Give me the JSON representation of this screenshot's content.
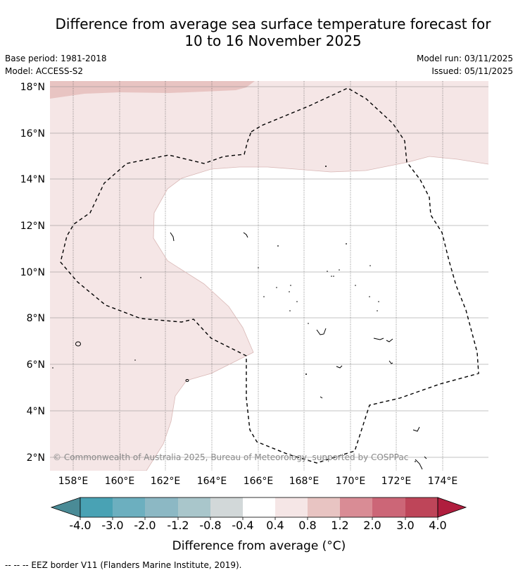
{
  "header": {
    "title_line1": "Difference from average sea surface temperature forecast for",
    "title_line2": "10 to 16 November 2025",
    "base_period": "Base period: 1981-2018",
    "model": "Model: ACCESS-S2",
    "model_run": "Model run: 03/11/2025",
    "issued": "Issued: 05/11/2025"
  },
  "map": {
    "lat_labels": [
      "18°N",
      "16°N",
      "14°N",
      "12°N",
      "10°N",
      "8°N",
      "6°N",
      "4°N",
      "2°N"
    ],
    "lon_labels": [
      "158°E",
      "160°E",
      "162°E",
      "164°E",
      "166°E",
      "168°E",
      "170°E",
      "172°E",
      "174°E"
    ],
    "copyright": "© Commonwealth of Australia 2025, Bureau of Meteorology, supported by COSPPac",
    "colors": {
      "anomaly_0_4_to_0_8": "#f5e6e6",
      "anomaly_0_8_to_1_2": "#e8c4c2",
      "neutral": "#ffffff"
    }
  },
  "colorbar": {
    "tick_labels": [
      "-4.0",
      "-3.0",
      "-2.0",
      "-1.2",
      "-0.8",
      "-0.4",
      "0.4",
      "0.8",
      "1.2",
      "2.0",
      "3.0",
      "4.0"
    ],
    "colors": [
      "#4a8b96",
      "#49a2b4",
      "#6cafbf",
      "#8cb8c4",
      "#a9c6cb",
      "#d2d8d9",
      "#ffffff",
      "#f5e6e6",
      "#e8c4c2",
      "#d98c95",
      "#cc6677",
      "#be4559",
      "#b01e3e"
    ],
    "label": "Difference from average (°C)"
  },
  "footer": {
    "legend": "--  --  -- EEZ border V11 (Flanders Marine Institute, 2019)."
  }
}
